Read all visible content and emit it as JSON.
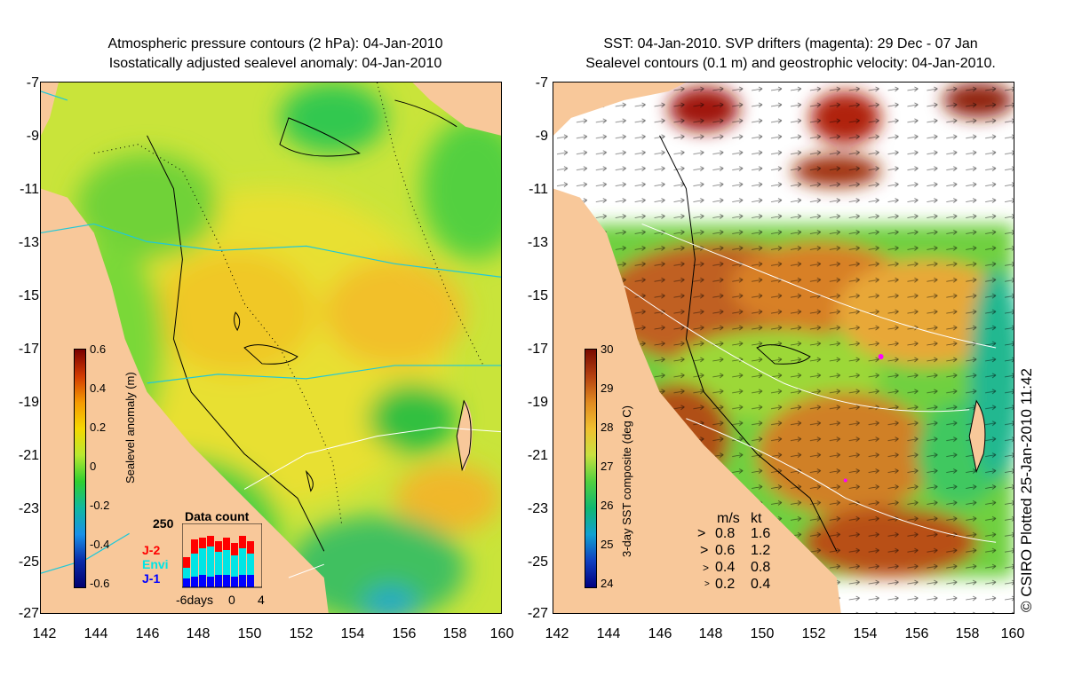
{
  "left_panel": {
    "title_line1": "Atmospheric pressure contours (2 hPa): 04-Jan-2010",
    "title_line2": "Isostatically adjusted sealevel anomaly: 04-Jan-2010",
    "colorbar": {
      "label": "Sealevel anomaly (m)",
      "ticks": [
        "0.6",
        "0.4",
        "0.2",
        "0",
        "-0.2",
        "-0.4",
        "-0.6"
      ]
    },
    "data_count": {
      "title": "Data count",
      "y_max_label": "250",
      "x_labels": [
        "-6days",
        "0",
        "4"
      ],
      "satellites": [
        {
          "name": "J-2",
          "color": "#ff0000"
        },
        {
          "name": "Envi",
          "color": "#00e5e5"
        },
        {
          "name": "J-1",
          "color": "#0000ff"
        }
      ]
    }
  },
  "right_panel": {
    "title_line1": "SST: 04-Jan-2010. SVP drifters (magenta): 29 Dec - 07 Jan",
    "title_line2": "Sealevel contours (0.1 m) and geostrophic velocity: 04-Jan-2010.",
    "colorbar": {
      "label": "3-day SST composite (deg C)",
      "ticks": [
        "30",
        "29",
        "28",
        "27",
        "26",
        "25",
        "24"
      ]
    },
    "velocity_legend": {
      "header_ms": "m/s",
      "header_kt": "kt",
      "rows": [
        {
          "ms": "0.8",
          "kt": "1.6"
        },
        {
          "ms": "0.6",
          "kt": "1.2"
        },
        {
          "ms": "0.4",
          "kt": "0.8"
        },
        {
          "ms": "0.2",
          "kt": "0.4"
        }
      ]
    },
    "credit": "© CSIRO Plotted 25-Jan-2010 11:42"
  },
  "axes": {
    "y_ticks": [
      "-7",
      "-9",
      "-11",
      "-13",
      "-15",
      "-17",
      "-19",
      "-21",
      "-23",
      "-25",
      "-27"
    ],
    "x_ticks": [
      "142",
      "144",
      "146",
      "148",
      "150",
      "152",
      "154",
      "156",
      "158",
      "160"
    ]
  },
  "colors": {
    "land": "#f8c89a",
    "cbar_sla": [
      "#7a0000",
      "#d23a00",
      "#f59a00",
      "#f5d800",
      "#b8e830",
      "#2fcf30",
      "#10b8a0",
      "#1890e8",
      "#0a2aa8",
      "#000070"
    ],
    "cbar_sst": [
      "#7a0a00",
      "#b44010",
      "#e08a20",
      "#f0c030",
      "#c8e040",
      "#50d040",
      "#10b870",
      "#10a0d0",
      "#1040c0",
      "#000080"
    ]
  }
}
